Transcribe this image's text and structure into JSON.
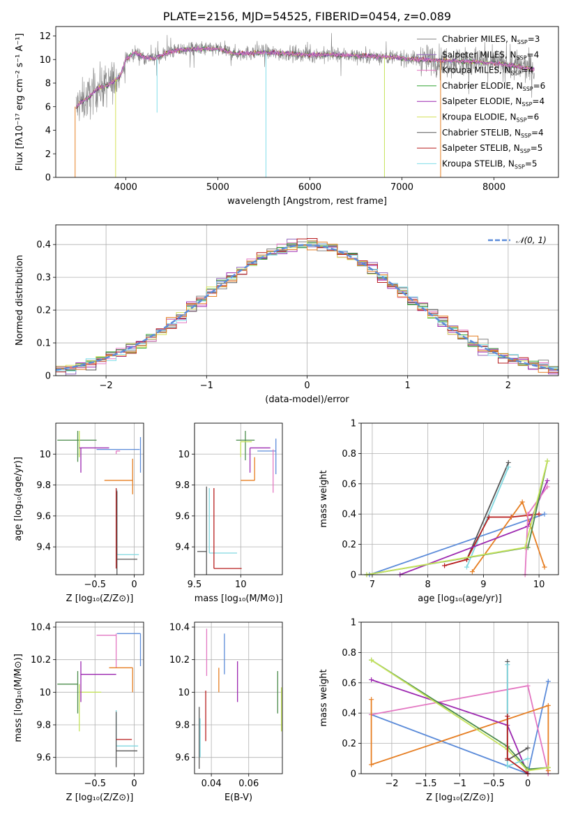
{
  "chart_data": [
    {
      "id": "spectrum",
      "type": "line",
      "title": "PLATE=2156, MJD=54525, FIBERID=0454, z=0.089",
      "xlabel": "wavelength [Angstrom, rest frame]",
      "ylabel": "Flux [fλ10⁻¹⁷ erg cm⁻² s⁻¹ A⁻¹]",
      "xlim": [
        3240,
        8700
      ],
      "ylim": [
        0,
        12.8
      ],
      "xticks": [
        4000,
        5000,
        6000,
        7000,
        8000
      ],
      "yticks": [
        0,
        2,
        4,
        6,
        8,
        10,
        12
      ],
      "grid": false,
      "legend_position": "right",
      "series": [
        {
          "name": "Chabrier MILES, N_SSP=3",
          "color": "#808080"
        },
        {
          "name": "Salpeter MILES, N_SSP=4",
          "color": "#9467bd"
        },
        {
          "name": "Kroupa MILES, N_SSP=4",
          "color": "#e377c2"
        },
        {
          "name": "Chabrier ELODIE, N_SSP=6",
          "color": "#2ca02c"
        },
        {
          "name": "Salpeter ELODIE, N_SSP=4",
          "color": "#9c27b0"
        },
        {
          "name": "Kroupa ELODIE, N_SSP=6",
          "color": "#d4e157"
        },
        {
          "name": "Chabrier STELIB, N_SSP=4",
          "color": "#555555"
        },
        {
          "name": "Salpeter STELIB, N_SSP=5",
          "color": "#b71c1c"
        },
        {
          "name": "Kroupa STELIB, N_SSP=5",
          "color": "#80deea"
        }
      ],
      "profile": {
        "x": [
          3450,
          3500,
          3600,
          3700,
          3800,
          3900,
          3950,
          4000,
          4100,
          4200,
          4300,
          4500,
          4700,
          5000,
          5200,
          5500,
          5800,
          6000,
          6300,
          6600,
          6900,
          7200,
          7500,
          7800,
          8000,
          8200,
          8400
        ],
        "y": [
          5.8,
          6.3,
          6.8,
          7.6,
          7.8,
          8.3,
          8.8,
          10.0,
          10.6,
          10.2,
          10.1,
          10.7,
          10.9,
          10.9,
          10.5,
          10.6,
          10.5,
          10.4,
          10.4,
          10.3,
          10.2,
          10.0,
          9.9,
          9.8,
          9.7,
          9.5,
          9.2
        ]
      },
      "absorption_lines": [
        {
          "x": 3890,
          "to": 0.0
        },
        {
          "x": 4340,
          "to": 5.5
        },
        {
          "x": 5523,
          "to": 0.0
        },
        {
          "x": 6810,
          "to": 0.0
        },
        {
          "x": 7420,
          "to": 0.0
        }
      ]
    },
    {
      "id": "residuals",
      "type": "line",
      "xlabel": "(data-model)/error",
      "ylabel": "Normed distribution",
      "xlim": [
        -2.5,
        2.5
      ],
      "ylim": [
        0,
        0.46
      ],
      "xticks": [
        -2,
        -1,
        0,
        1,
        2
      ],
      "yticks": [
        0.0,
        0.1,
        0.2,
        0.3,
        0.4
      ],
      "grid": true,
      "legend": [
        {
          "name": "𝒩(0, 1)",
          "color": "#5b8bd9",
          "style": "dashed"
        }
      ],
      "legend_position": "top-right",
      "bin_width": 0.1,
      "series_colors": [
        "#808080",
        "#9467bd",
        "#e377c2",
        "#2ca02c",
        "#9c27b0",
        "#d4e157",
        "#555555",
        "#b71c1c",
        "#80deea",
        "#e67e22"
      ]
    },
    {
      "id": "age_vs_Z",
      "type": "scatter",
      "xlabel": "Z [log₁₀(Z/Z⊙)]",
      "ylabel": "age  [log₁₀(age/yr)]",
      "xlim": [
        -1.0,
        0.12
      ],
      "ylim": [
        9.22,
        10.2
      ],
      "xticks": [
        -0.5,
        0.0
      ],
      "yticks": [
        9.4,
        9.6,
        9.8,
        10.0
      ],
      "grid": true,
      "points": [
        {
          "x": -0.72,
          "y": 10.09,
          "xerr": [
            0.26,
            0.24
          ],
          "yerr": [
            0.14,
            0.06
          ],
          "color": "#4a8b4a"
        },
        {
          "x": -0.7,
          "y": 10.08,
          "xerr": [
            0.0,
            0.0
          ],
          "yerr": [
            0.1,
            0.07
          ],
          "color": "#c5e35a"
        },
        {
          "x": -0.68,
          "y": 10.04,
          "xerr": [
            0.02,
            0.36
          ],
          "yerr": [
            0.16,
            0.0
          ],
          "color": "#9c27b0"
        },
        {
          "x": -0.23,
          "y": 10.03,
          "xerr": [
            0.25,
            0.3
          ],
          "yerr": [
            0.0,
            0.0
          ],
          "color": "#5b8bd9"
        },
        {
          "x": -0.23,
          "y": 10.02,
          "xerr": [
            0.0,
            0.05
          ],
          "yerr": [
            0.02,
            0.0
          ],
          "color": "#e377c2"
        },
        {
          "x": 0.08,
          "y": 10.03,
          "xerr": [
            0.0,
            0.0
          ],
          "yerr": [
            0.15,
            0.08
          ],
          "color": "#5b8bd9"
        },
        {
          "x": -0.02,
          "y": 9.83,
          "xerr": [
            0.36,
            0.0
          ],
          "yerr": [
            0.09,
            0.14
          ],
          "color": "#e67e22"
        },
        {
          "x": -0.22,
          "y": 9.35,
          "xerr": [
            0.0,
            0.28
          ],
          "yerr": [
            0.0,
            0.42
          ],
          "color": "#7fd8e0"
        },
        {
          "x": -0.22,
          "y": 9.32,
          "xerr": [
            0.0,
            0.26
          ],
          "yerr": [
            0.2,
            0.44
          ],
          "color": "#555555"
        },
        {
          "x": -0.23,
          "y": 9.26,
          "xerr": [
            0.0,
            0.0
          ],
          "yerr": [
            0.0,
            0.52
          ],
          "color": "#b71c1c"
        }
      ]
    },
    {
      "id": "age_vs_mass",
      "type": "scatter",
      "xlabel": "mass [log₁₀(M/M⊙)]",
      "xlim": [
        9.5,
        10.45
      ],
      "ylim": [
        9.22,
        10.2
      ],
      "xticks": [
        9.5,
        10.0
      ],
      "yticks": [
        9.4,
        9.6,
        9.8,
        10.0
      ],
      "grid": true,
      "points": [
        {
          "x": 10.05,
          "y": 10.09,
          "xerr": [
            0.1,
            0.1
          ],
          "yerr": [
            0.13,
            0.06
          ],
          "color": "#4a8b4a"
        },
        {
          "x": 10.0,
          "y": 10.08,
          "xerr": [
            0.0,
            0.12
          ],
          "yerr": [
            0.1,
            0.0
          ],
          "color": "#c5e35a"
        },
        {
          "x": 10.1,
          "y": 10.04,
          "xerr": [
            0.0,
            0.22
          ],
          "yerr": [
            0.16,
            0.0
          ],
          "color": "#9c27b0"
        },
        {
          "x": 10.38,
          "y": 10.02,
          "xerr": [
            0.2,
            0.0
          ],
          "yerr": [
            0.15,
            0.08
          ],
          "color": "#5b8bd9"
        },
        {
          "x": 10.35,
          "y": 10.03,
          "xerr": [
            0.0,
            0.0
          ],
          "yerr": [
            0.28,
            0.0
          ],
          "color": "#e377c2"
        },
        {
          "x": 10.15,
          "y": 9.83,
          "xerr": [
            0.15,
            0.0
          ],
          "yerr": [
            0.0,
            0.15
          ],
          "color": "#e67e22"
        },
        {
          "x": 9.66,
          "y": 9.36,
          "xerr": [
            0.0,
            0.3
          ],
          "yerr": [
            0.0,
            0.42
          ],
          "color": "#7fd8e0"
        },
        {
          "x": 9.63,
          "y": 9.37,
          "xerr": [
            0.1,
            0.0
          ],
          "yerr": [
            0.2,
            0.42
          ],
          "color": "#555555"
        },
        {
          "x": 9.71,
          "y": 9.26,
          "xerr": [
            0.0,
            0.3
          ],
          "yerr": [
            0.0,
            0.52
          ],
          "color": "#b71c1c"
        }
      ]
    },
    {
      "id": "weight_vs_age",
      "type": "line",
      "xlabel": "age  [log₁₀(age/yr)]",
      "ylabel": "mass weight",
      "xlim": [
        6.8,
        10.35
      ],
      "ylim": [
        0,
        1.0
      ],
      "xticks": [
        7,
        8,
        9,
        10
      ],
      "yticks": [
        0.0,
        0.2,
        0.4,
        0.6,
        0.8,
        1.0
      ],
      "grid": true,
      "series": [
        {
          "color": "#5b8bd9",
          "x": [
            6.95,
            10.1
          ],
          "y": [
            0.0,
            0.4
          ]
        },
        {
          "color": "#555555",
          "x": [
            8.7,
            9.45
          ],
          "y": [
            0.1,
            0.74
          ]
        },
        {
          "color": "#7fd8e0",
          "x": [
            8.7,
            9.45
          ],
          "y": [
            0.05,
            0.71
          ]
        },
        {
          "color": "#b71c1c",
          "x": [
            8.3,
            8.7,
            9.1,
            9.5,
            10.0
          ],
          "y": [
            0.06,
            0.1,
            0.38,
            0.38,
            0.4
          ]
        },
        {
          "color": "#e67e22",
          "x": [
            8.8,
            9.7,
            10.1
          ],
          "y": [
            0.02,
            0.48,
            0.05
          ]
        },
        {
          "color": "#9c27b0",
          "x": [
            7.5,
            9.8,
            10.15
          ],
          "y": [
            0.0,
            0.32,
            0.62
          ]
        },
        {
          "color": "#e377c2",
          "x": [
            9.75,
            9.8,
            10.15
          ],
          "y": [
            0.0,
            0.4,
            0.58
          ]
        },
        {
          "color": "#4a8b4a",
          "x": [
            6.9,
            9.8,
            10.15
          ],
          "y": [
            0.0,
            0.18,
            0.75
          ]
        },
        {
          "color": "#c5e35a",
          "x": [
            6.9,
            9.75,
            10.15
          ],
          "y": [
            0.0,
            0.18,
            0.75
          ]
        }
      ]
    },
    {
      "id": "mass_vs_Z",
      "type": "scatter",
      "xlabel": "Z [log₁₀(Z/Z⊙)]",
      "ylabel": "mass [log₁₀(M/M⊙)]",
      "xlim": [
        -1.0,
        0.12
      ],
      "ylim": [
        9.5,
        10.43
      ],
      "xticks": [
        -0.5,
        0.0
      ],
      "yticks": [
        9.6,
        9.8,
        10.0,
        10.2,
        10.4
      ],
      "grid": true,
      "points": [
        {
          "x": -0.72,
          "y": 10.05,
          "xerr": [
            0.26,
            0.0
          ],
          "yerr": [
            0.18,
            0.08
          ],
          "color": "#4a8b4a"
        },
        {
          "x": -0.7,
          "y": 10.0,
          "xerr": [
            0.0,
            0.28
          ],
          "yerr": [
            0.24,
            0.05
          ],
          "color": "#c5e35a"
        },
        {
          "x": -0.68,
          "y": 10.11,
          "xerr": [
            0.0,
            0.45
          ],
          "yerr": [
            0.17,
            0.08
          ],
          "color": "#9c27b0"
        },
        {
          "x": -0.23,
          "y": 10.35,
          "xerr": [
            0.25,
            0.0
          ],
          "yerr": [
            0.2,
            0.01
          ],
          "color": "#e377c2"
        },
        {
          "x": 0.08,
          "y": 10.36,
          "xerr": [
            0.3,
            0.0
          ],
          "yerr": [
            0.2,
            0.0
          ],
          "color": "#5b8bd9"
        },
        {
          "x": -0.02,
          "y": 10.15,
          "xerr": [
            0.3,
            0.0
          ],
          "yerr": [
            0.15,
            0.0
          ],
          "color": "#e67e22"
        },
        {
          "x": -0.23,
          "y": 9.67,
          "xerr": [
            0.0,
            0.28
          ],
          "yerr": [
            0.0,
            0.22
          ],
          "color": "#7fd8e0"
        },
        {
          "x": -0.23,
          "y": 9.64,
          "xerr": [
            0.0,
            0.27
          ],
          "yerr": [
            0.1,
            0.24
          ],
          "color": "#555555"
        },
        {
          "x": -0.23,
          "y": 9.71,
          "xerr": [
            0.0,
            0.2
          ],
          "yerr": [
            0.0,
            0.0
          ],
          "color": "#b71c1c"
        }
      ]
    },
    {
      "id": "mass_vs_ebv",
      "type": "scatter",
      "xlabel": "E(B-V)",
      "xlim": [
        0.031,
        0.078
      ],
      "ylim": [
        9.5,
        10.43
      ],
      "xticks": [
        0.04,
        0.06
      ],
      "yticks": [
        9.6,
        9.8,
        10.0,
        10.2,
        10.4
      ],
      "grid": true,
      "points": [
        {
          "x": 0.0335,
          "y": 9.73,
          "yerr": [
            0.2,
            0.18
          ],
          "color": "#555555"
        },
        {
          "x": 0.034,
          "y": 9.72,
          "yerr": [
            0.12,
            0.12
          ],
          "color": "#7fd8e0"
        },
        {
          "x": 0.037,
          "y": 9.86,
          "yerr": [
            0.16,
            0.15
          ],
          "color": "#b71c1c"
        },
        {
          "x": 0.0375,
          "y": 10.24,
          "yerr": [
            0.14,
            0.15
          ],
          "color": "#e377c2"
        },
        {
          "x": 0.044,
          "y": 10.15,
          "yerr": [
            0.15,
            0.0
          ],
          "color": "#e67e22"
        },
        {
          "x": 0.047,
          "y": 10.25,
          "yerr": [
            0.14,
            0.11
          ],
          "color": "#5b8bd9"
        },
        {
          "x": 0.054,
          "y": 10.07,
          "yerr": [
            0.13,
            0.12
          ],
          "color": "#9c27b0"
        },
        {
          "x": 0.0755,
          "y": 10.0,
          "yerr": [
            0.13,
            0.13
          ],
          "color": "#4a8b4a"
        },
        {
          "x": 0.0775,
          "y": 9.9,
          "yerr": [
            0.14,
            0.13
          ],
          "color": "#c5e35a"
        }
      ]
    },
    {
      "id": "weight_vs_Z",
      "type": "line",
      "xlabel": "Z [log₁₀(Z/Z⊙)]",
      "ylabel": "mass weight",
      "xlim": [
        -2.45,
        0.45
      ],
      "ylim": [
        0,
        1.0
      ],
      "xticks": [
        -2.0,
        -1.5,
        -1.0,
        -0.5,
        0.0
      ],
      "yticks": [
        0.0,
        0.2,
        0.4,
        0.6,
        0.8,
        1.0
      ],
      "grid": true,
      "series": [
        {
          "color": "#5b8bd9",
          "x": [
            -2.3,
            0.0,
            0.3
          ],
          "y": [
            0.39,
            0.0,
            0.61
          ]
        },
        {
          "color": "#e377c2",
          "x": [
            -2.3,
            0.0,
            0.3
          ],
          "y": [
            0.39,
            0.58,
            0.0
          ]
        },
        {
          "color": "#e67e22",
          "x": [
            -2.3,
            -2.3,
            0.3,
            0.3
          ],
          "y": [
            0.49,
            0.06,
            0.45,
            0.02
          ]
        },
        {
          "color": "#9c27b0",
          "x": [
            -2.3,
            -0.3,
            0.0
          ],
          "y": [
            0.62,
            0.32,
            0.0
          ]
        },
        {
          "color": "#4a8b4a",
          "x": [
            -2.3,
            -0.3,
            0.0,
            0.3
          ],
          "y": [
            0.75,
            0.18,
            0.03,
            0.04
          ]
        },
        {
          "color": "#c5e35a",
          "x": [
            -2.3,
            -0.3,
            0.0,
            0.3
          ],
          "y": [
            0.75,
            0.16,
            0.02,
            0.04
          ]
        },
        {
          "color": "#555555",
          "x": [
            -0.3,
            -0.3,
            0.0
          ],
          "y": [
            0.74,
            0.09,
            0.17
          ]
        },
        {
          "color": "#7fd8e0",
          "x": [
            -0.3,
            -0.3,
            0.0
          ],
          "y": [
            0.72,
            0.05,
            0.1
          ]
        },
        {
          "color": "#b71c1c",
          "x": [
            -0.3,
            -0.3,
            0.0
          ],
          "y": [
            0.38,
            0.1,
            0.0
          ]
        }
      ]
    }
  ]
}
